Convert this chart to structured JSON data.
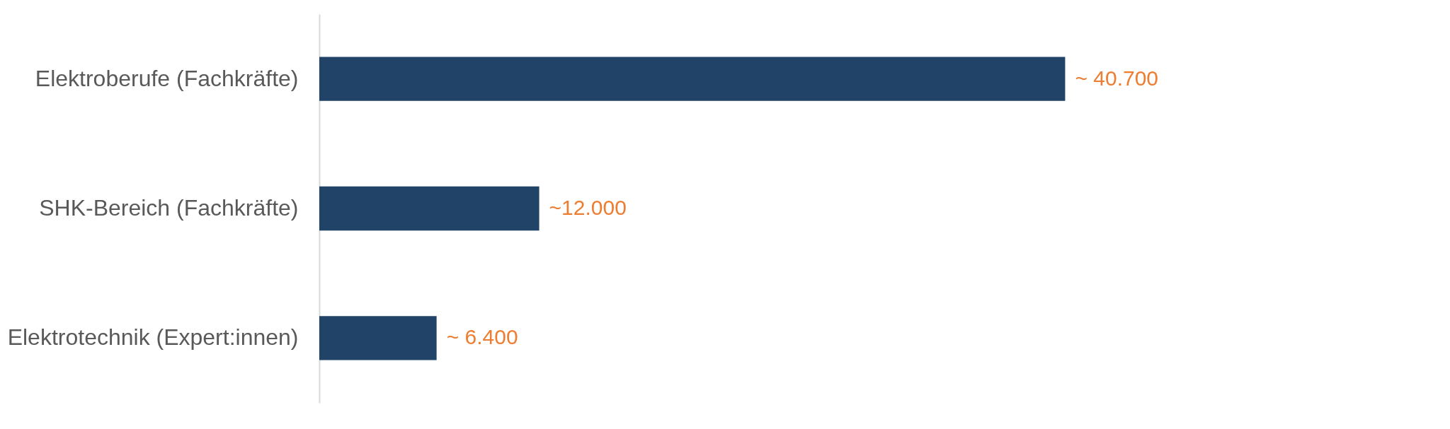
{
  "chart_data": {
    "type": "bar",
    "orientation": "horizontal",
    "categories": [
      "Elektroberufe (Fachkräfte)",
      "SHK-Bereich (Fachkräfte)",
      "Elektrotechnik (Expert:innen)"
    ],
    "values": [
      40700,
      12000,
      6400
    ],
    "color": "#214368",
    "value_labels": [
      "~ 40.700",
      "~12.000",
      "~ 6.400"
    ],
    "grid": false
  }
}
